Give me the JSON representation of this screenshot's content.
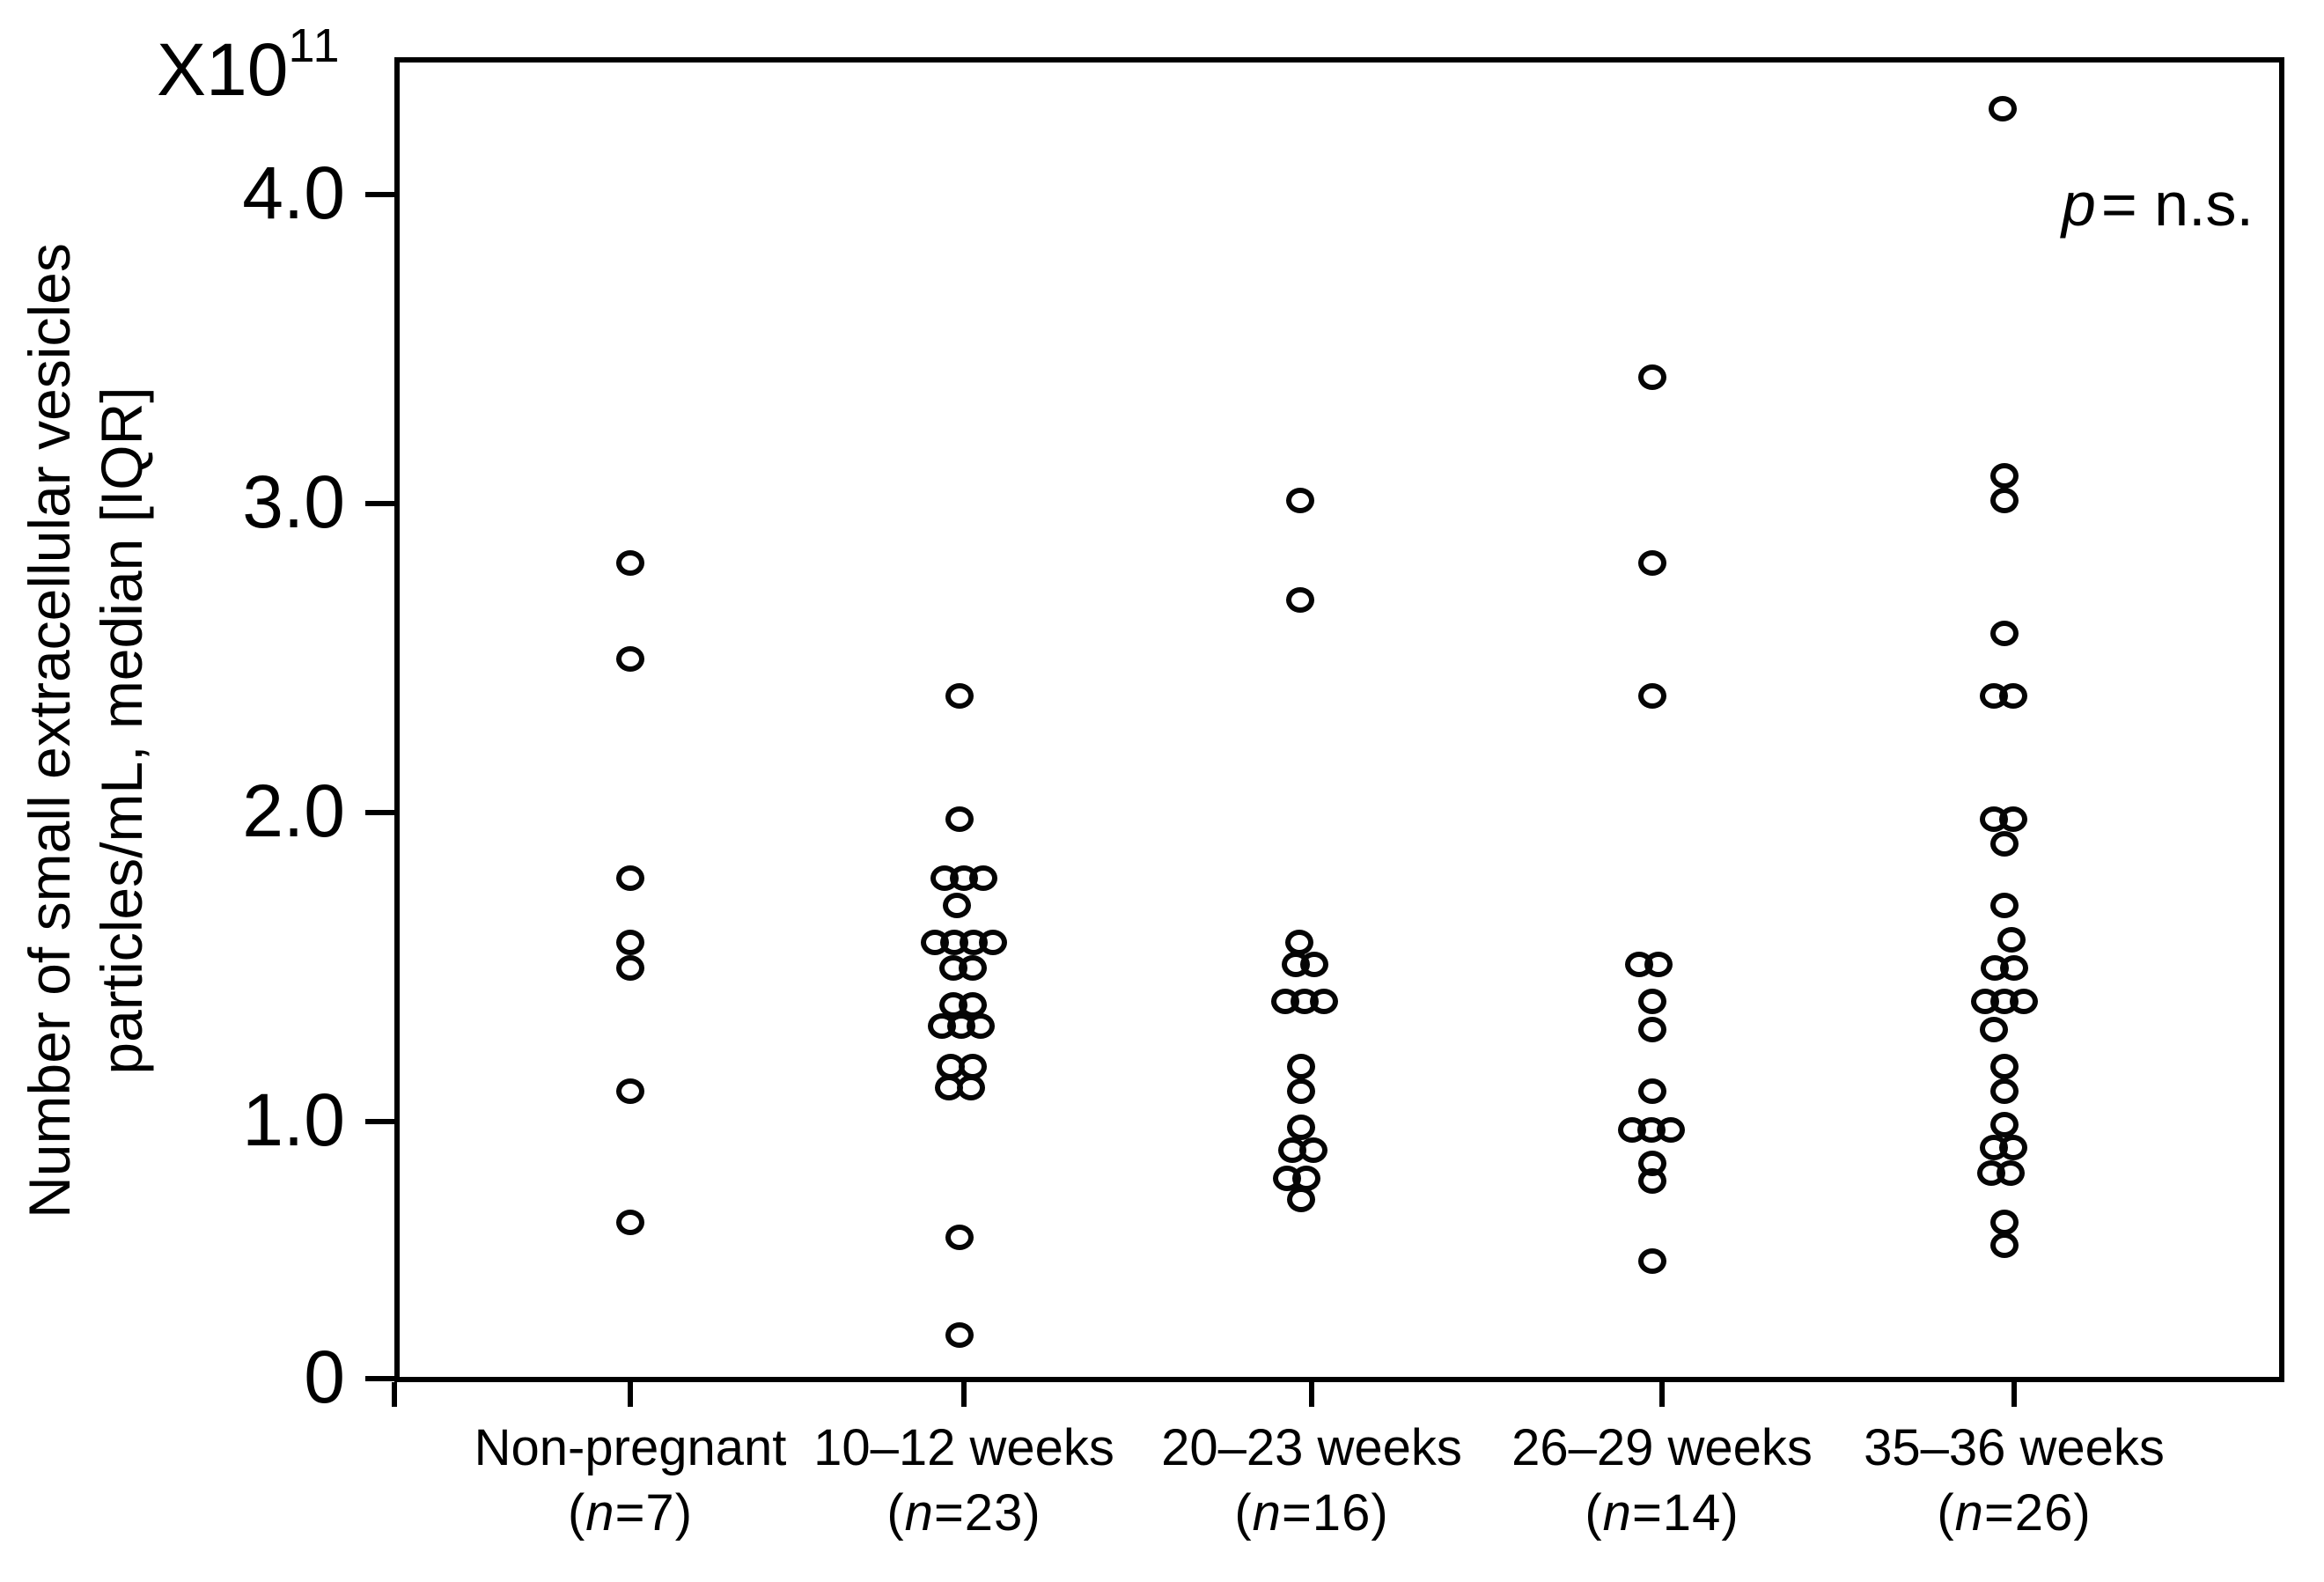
{
  "figure": {
    "multiplier_base": "X10",
    "multiplier_exponent": "11",
    "y_axis_title_line1": "Number of small extracellular vesicles",
    "y_axis_title_line2": "particles/mL, median [IQR]",
    "p_annotation_italic": "p",
    "p_annotation_rest": "= n.s."
  },
  "chart_data": {
    "type": "scatter",
    "subtype": "strip-dot-plot",
    "title": "",
    "xlabel": "",
    "ylabel": "Number of small extracellular vesicles particles/mL, median [IQR]",
    "y_unit_multiplier": "x10^11",
    "ylim": [
      0,
      4.45
    ],
    "y_ticks": [
      0,
      1.0,
      2.0,
      3.0,
      4.0
    ],
    "y_tick_labels": [
      "0",
      "1.0",
      "2.0",
      "3.0",
      "4.0"
    ],
    "grid": "off",
    "legend": "none",
    "annotation": "p = n.s.",
    "marker_style": "open-circle",
    "categories": [
      "Non-pregnant",
      "10–12 weeks",
      "20–23 weeks",
      "26–29 weeks",
      "35–36 weeks"
    ],
    "groups": [
      {
        "label": "Non-pregnant",
        "n_label": "(n=7)",
        "n": 7,
        "values": [
          2.81,
          2.5,
          1.79,
          1.58,
          1.5,
          1.1,
          0.61
        ],
        "points": [
          {
            "v": 2.81,
            "dx": 0
          },
          {
            "v": 2.5,
            "dx": 0
          },
          {
            "v": 1.79,
            "dx": 0
          },
          {
            "v": 1.58,
            "dx": 0
          },
          {
            "v": 1.5,
            "dx": 0
          },
          {
            "v": 1.1,
            "dx": 0
          },
          {
            "v": 0.61,
            "dx": 0
          }
        ]
      },
      {
        "label": "10–12 weeks",
        "n_label": "(n=23)",
        "n": 23,
        "values": [
          2.38,
          1.98,
          1.79,
          1.79,
          1.79,
          1.7,
          1.58,
          1.58,
          1.58,
          1.58,
          1.5,
          1.5,
          1.38,
          1.38,
          1.31,
          1.31,
          1.31,
          1.18,
          1.18,
          1.11,
          1.11,
          0.55,
          0.17
        ],
        "points": [
          {
            "v": 2.38,
            "dx": -5
          },
          {
            "v": 1.98,
            "dx": -5
          },
          {
            "v": 1.79,
            "dx": -22
          },
          {
            "v": 1.79,
            "dx": 0
          },
          {
            "v": 1.79,
            "dx": 22
          },
          {
            "v": 1.7,
            "dx": -8
          },
          {
            "v": 1.58,
            "dx": -33
          },
          {
            "v": 1.58,
            "dx": -11
          },
          {
            "v": 1.58,
            "dx": 11
          },
          {
            "v": 1.58,
            "dx": 33
          },
          {
            "v": 1.5,
            "dx": -12
          },
          {
            "v": 1.5,
            "dx": 10
          },
          {
            "v": 1.38,
            "dx": -12
          },
          {
            "v": 1.38,
            "dx": 10
          },
          {
            "v": 1.31,
            "dx": -25
          },
          {
            "v": 1.31,
            "dx": -3
          },
          {
            "v": 1.31,
            "dx": 19
          },
          {
            "v": 1.18,
            "dx": -15
          },
          {
            "v": 1.18,
            "dx": 10
          },
          {
            "v": 1.11,
            "dx": -17
          },
          {
            "v": 1.11,
            "dx": 8
          },
          {
            "v": 0.55,
            "dx": -5
          },
          {
            "v": 0.17,
            "dx": -5
          }
        ]
      },
      {
        "label": "20–23 weeks",
        "n_label": "(n=16)",
        "n": 16,
        "values": [
          3.01,
          2.69,
          1.58,
          1.51,
          1.51,
          1.39,
          1.39,
          1.39,
          1.18,
          1.1,
          0.98,
          0.89,
          0.89,
          0.78,
          0.78,
          0.7
        ],
        "points": [
          {
            "v": 3.01,
            "dx": -13
          },
          {
            "v": 2.69,
            "dx": -13
          },
          {
            "v": 1.58,
            "dx": -14
          },
          {
            "v": 1.51,
            "dx": -18
          },
          {
            "v": 1.51,
            "dx": 3
          },
          {
            "v": 1.39,
            "dx": -30
          },
          {
            "v": 1.39,
            "dx": -8
          },
          {
            "v": 1.39,
            "dx": 14
          },
          {
            "v": 1.18,
            "dx": -12
          },
          {
            "v": 1.1,
            "dx": -12
          },
          {
            "v": 0.98,
            "dx": -12
          },
          {
            "v": 0.89,
            "dx": -22
          },
          {
            "v": 0.89,
            "dx": 2
          },
          {
            "v": 0.78,
            "dx": -28
          },
          {
            "v": 0.78,
            "dx": -6
          },
          {
            "v": 0.7,
            "dx": -12
          }
        ]
      },
      {
        "label": "26–29 weeks",
        "n_label": "(n=14)",
        "n": 14,
        "values": [
          3.41,
          2.81,
          2.38,
          1.51,
          1.51,
          1.39,
          1.3,
          1.1,
          0.97,
          0.97,
          0.97,
          0.84,
          0.77,
          0.46
        ],
        "points": [
          {
            "v": 3.41,
            "dx": -11
          },
          {
            "v": 2.81,
            "dx": -11
          },
          {
            "v": 2.38,
            "dx": -11
          },
          {
            "v": 1.51,
            "dx": -26
          },
          {
            "v": 1.51,
            "dx": -4
          },
          {
            "v": 1.39,
            "dx": -11
          },
          {
            "v": 1.3,
            "dx": -11
          },
          {
            "v": 1.1,
            "dx": -11
          },
          {
            "v": 0.97,
            "dx": -34
          },
          {
            "v": 0.97,
            "dx": -12
          },
          {
            "v": 0.97,
            "dx": 10
          },
          {
            "v": 0.84,
            "dx": -11
          },
          {
            "v": 0.77,
            "dx": -11
          },
          {
            "v": 0.46,
            "dx": -11
          }
        ]
      },
      {
        "label": "35–36 weeks",
        "n_label": "(n=26)",
        "n": 26,
        "values": [
          4.28,
          3.09,
          3.01,
          2.58,
          2.38,
          2.38,
          1.98,
          1.98,
          1.9,
          1.7,
          1.59,
          1.5,
          1.5,
          1.39,
          1.39,
          1.39,
          1.3,
          1.18,
          1.1,
          0.99,
          0.9,
          0.9,
          0.8,
          0.8,
          0.61,
          0.52
        ],
        "points": [
          {
            "v": 4.28,
            "dx": -13
          },
          {
            "v": 3.09,
            "dx": -11
          },
          {
            "v": 3.01,
            "dx": -11
          },
          {
            "v": 2.58,
            "dx": -11
          },
          {
            "v": 2.38,
            "dx": -23
          },
          {
            "v": 2.38,
            "dx": -1
          },
          {
            "v": 1.98,
            "dx": -23
          },
          {
            "v": 1.98,
            "dx": -1
          },
          {
            "v": 1.9,
            "dx": -11
          },
          {
            "v": 1.7,
            "dx": -11
          },
          {
            "v": 1.59,
            "dx": -3
          },
          {
            "v": 1.5,
            "dx": -22
          },
          {
            "v": 1.5,
            "dx": 0
          },
          {
            "v": 1.39,
            "dx": -33
          },
          {
            "v": 1.39,
            "dx": -11
          },
          {
            "v": 1.39,
            "dx": 11
          },
          {
            "v": 1.3,
            "dx": -23
          },
          {
            "v": 1.18,
            "dx": -11
          },
          {
            "v": 1.1,
            "dx": -11
          },
          {
            "v": 0.99,
            "dx": -11
          },
          {
            "v": 0.9,
            "dx": -23
          },
          {
            "v": 0.9,
            "dx": -1
          },
          {
            "v": 0.8,
            "dx": -26
          },
          {
            "v": 0.8,
            "dx": -4
          },
          {
            "v": 0.61,
            "dx": -11
          },
          {
            "v": 0.52,
            "dx": -11
          }
        ]
      }
    ]
  }
}
